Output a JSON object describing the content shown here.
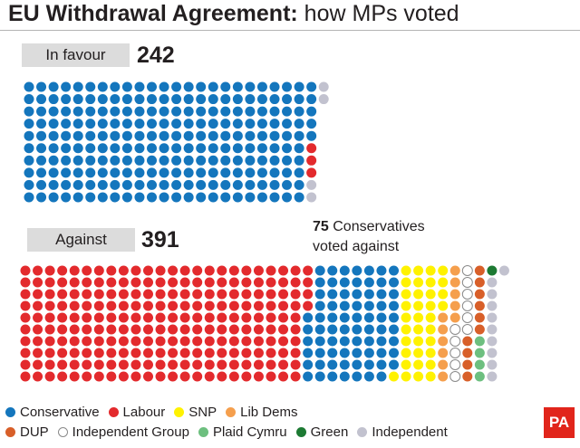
{
  "title": {
    "bold": "EU Withdrawal Agreement:",
    "rest": " how MPs voted"
  },
  "colors": {
    "Conservative": "#1476bd",
    "Labour": "#e32a2d",
    "SNP": "#fff200",
    "Lib Dems": "#f59f4d",
    "DUP": "#d85f29",
    "Independent Group": "#ffffff",
    "Plaid Cymru": "#6dbf7f",
    "Green": "#1d7a33",
    "Independent": "#c2c2cf"
  },
  "chart_data": {
    "type": "waffle",
    "in_favour": {
      "label": "In favour",
      "total": "242",
      "groups": [
        {
          "party": "Conservative",
          "count": 235
        },
        {
          "party": "Labour",
          "count": 3
        },
        {
          "party": "Independent",
          "count": 4
        }
      ]
    },
    "against": {
      "label": "Against",
      "total": "391",
      "groups": [
        {
          "party": "Labour",
          "count": 234
        },
        {
          "party": "Conservative",
          "count": 75
        },
        {
          "party": "SNP",
          "count": 35
        },
        {
          "party": "Lib Dems",
          "count": 11
        },
        {
          "party": "Independent Group",
          "count": 11
        },
        {
          "party": "DUP",
          "count": 10
        },
        {
          "party": "Plaid Cymru",
          "count": 4
        },
        {
          "party": "Green",
          "count": 1
        },
        {
          "party": "Independent",
          "count": 10
        }
      ]
    },
    "annotation": {
      "number": "75",
      "text": " Conservatives",
      "line2": "voted against"
    },
    "legend": [
      [
        "Conservative",
        "Labour",
        "SNP",
        "Lib Dems"
      ],
      [
        "DUP",
        "Independent Group",
        "Plaid Cymru",
        "Green",
        "Independent"
      ]
    ]
  },
  "logo": "PA"
}
